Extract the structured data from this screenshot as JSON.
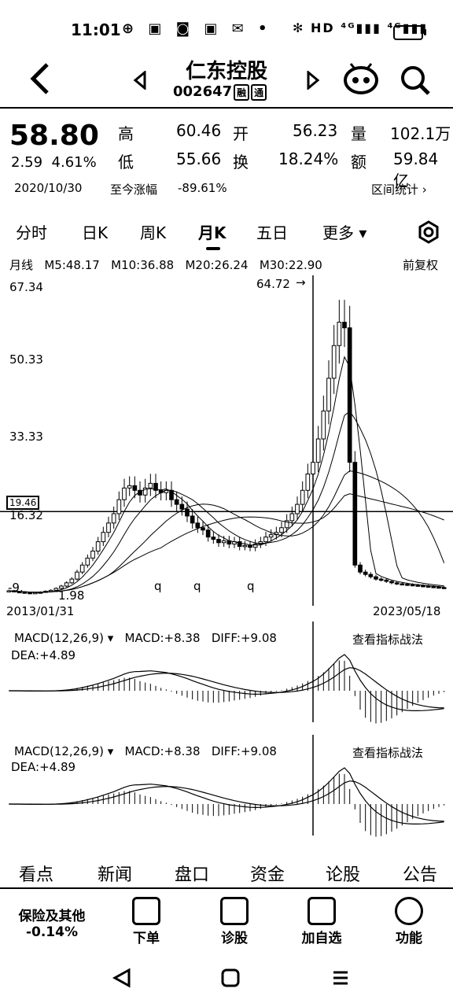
{
  "status_bar": {
    "time": "11:01",
    "left_icons": "⊕ ▣ ◙ ▣ ✉ •",
    "right_icons": "✻ HD ⁴ᴳ▮▮▮ ⁴ᴳ▮▮▮"
  },
  "header": {
    "stock_name": "仁东控股",
    "stock_code": "002647",
    "tags": [
      "融",
      "通"
    ]
  },
  "quote": {
    "price": "58.80",
    "change": "2.59",
    "change_pct": "4.61%",
    "high_label": "高",
    "high": "60.46",
    "open_label": "开",
    "open": "56.23",
    "volume_label": "量",
    "volume": "102.1万",
    "low_label": "低",
    "low": "55.66",
    "turnover_label": "换",
    "turnover": "18.24%",
    "amount_label": "额",
    "amount": "59.84亿",
    "date": "2020/10/30",
    "since_label": "至今涨幅",
    "since_value": "-89.61%",
    "range_stats": "区间统计"
  },
  "period_tabs": [
    "分时",
    "日K",
    "周K",
    "月K",
    "五日",
    "更多"
  ],
  "active_tab": "月K",
  "ma_bar": {
    "label": "月线",
    "m5": "M5:48.17",
    "m10": "M10:36.88",
    "m20": "M20:26.24",
    "m30": "M30:22.90",
    "adjust": "前复权"
  },
  "kline": {
    "y_ticks": [
      "67.34",
      "50.33",
      "33.33",
      "16.32"
    ],
    "crosshair_value": "19.46",
    "max_label": "64.72",
    "min_label": "1.98",
    "left_marker": "-9.",
    "event_markers": [
      "q",
      "q",
      "q"
    ],
    "start_date": "2013/01/31",
    "end_date": "2023/05/18"
  },
  "macd1": {
    "label": "MACD(12,26,9)",
    "macd": "MACD:+8.38",
    "diff": "DIFF:+9.08",
    "dea": "DEA:+4.89",
    "link": "查看指标战法"
  },
  "macd2": {
    "label": "MACD(12,26,9)",
    "macd": "MACD:+8.38",
    "diff": "DIFF:+9.08",
    "dea": "DEA:+4.89",
    "link": "查看指标战法"
  },
  "bottom_tabs": [
    "看点",
    "新闻",
    "盘口",
    "资金",
    "论股",
    "公告"
  ],
  "toolbar": {
    "sector_name": "保险及其他",
    "sector_change": "-0.14%",
    "order": "下单",
    "diagnose": "诊股",
    "add_watch": "加自选",
    "functions": "功能"
  },
  "chart_data": {
    "type": "candlestick",
    "period": "monthly",
    "x_range": [
      "2013/01/31",
      "2023/05/18"
    ],
    "ylim": [
      1.98,
      67.34
    ],
    "y_ticks": [
      67.34,
      50.33,
      33.33,
      16.32
    ],
    "max_price": 64.72,
    "min_price": 1.98,
    "series": [
      {
        "name": "M5",
        "value": 48.17
      },
      {
        "name": "M10",
        "value": 36.88
      },
      {
        "name": "M20",
        "value": 26.24
      },
      {
        "name": "M30",
        "value": 22.9
      }
    ],
    "approx_closes": [
      2.5,
      2.3,
      2.2,
      2.1,
      2.0,
      2.1,
      2.2,
      2.4,
      2.6,
      3.0,
      3.5,
      4.2,
      5.0,
      6.5,
      8.0,
      9.5,
      11.0,
      13.0,
      15.0,
      17.0,
      19.0,
      22.0,
      24.5,
      25.0,
      24.0,
      23.0,
      24.5,
      25.5,
      24.0,
      23.5,
      24.0,
      22.0,
      21.0,
      20.0,
      18.5,
      17.0,
      16.0,
      15.5,
      14.0,
      13.5,
      12.8,
      13.2,
      12.5,
      13.0,
      12.0,
      12.2,
      11.8,
      12.5,
      13.0,
      14.0,
      14.5,
      15.0,
      16.0,
      17.5,
      19.0,
      21.0,
      24.0,
      27.5,
      30.0,
      35.0,
      41.0,
      48.0,
      55.0,
      60.0,
      58.8,
      30.0,
      8.0,
      6.5,
      6.0,
      5.5,
      5.0,
      4.8,
      4.5,
      4.2,
      4.0,
      3.9,
      3.8,
      3.7,
      3.6,
      3.5,
      3.4,
      3.3,
      3.2,
      3.1
    ]
  }
}
